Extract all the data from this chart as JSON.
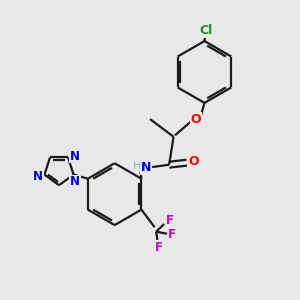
{
  "background_color": "#e8e8e8",
  "bond_color": "#1a1a1a",
  "cl_color": "#228B22",
  "o_color": "#ff0000",
  "n_color": "#0000dd",
  "h_color": "#7fbfbf",
  "f_color": "#cc00cc",
  "bond_width": 1.6,
  "figsize": [
    3.0,
    3.0
  ],
  "dpi": 100,
  "xlim": [
    0,
    10
  ],
  "ylim": [
    0,
    10
  ]
}
